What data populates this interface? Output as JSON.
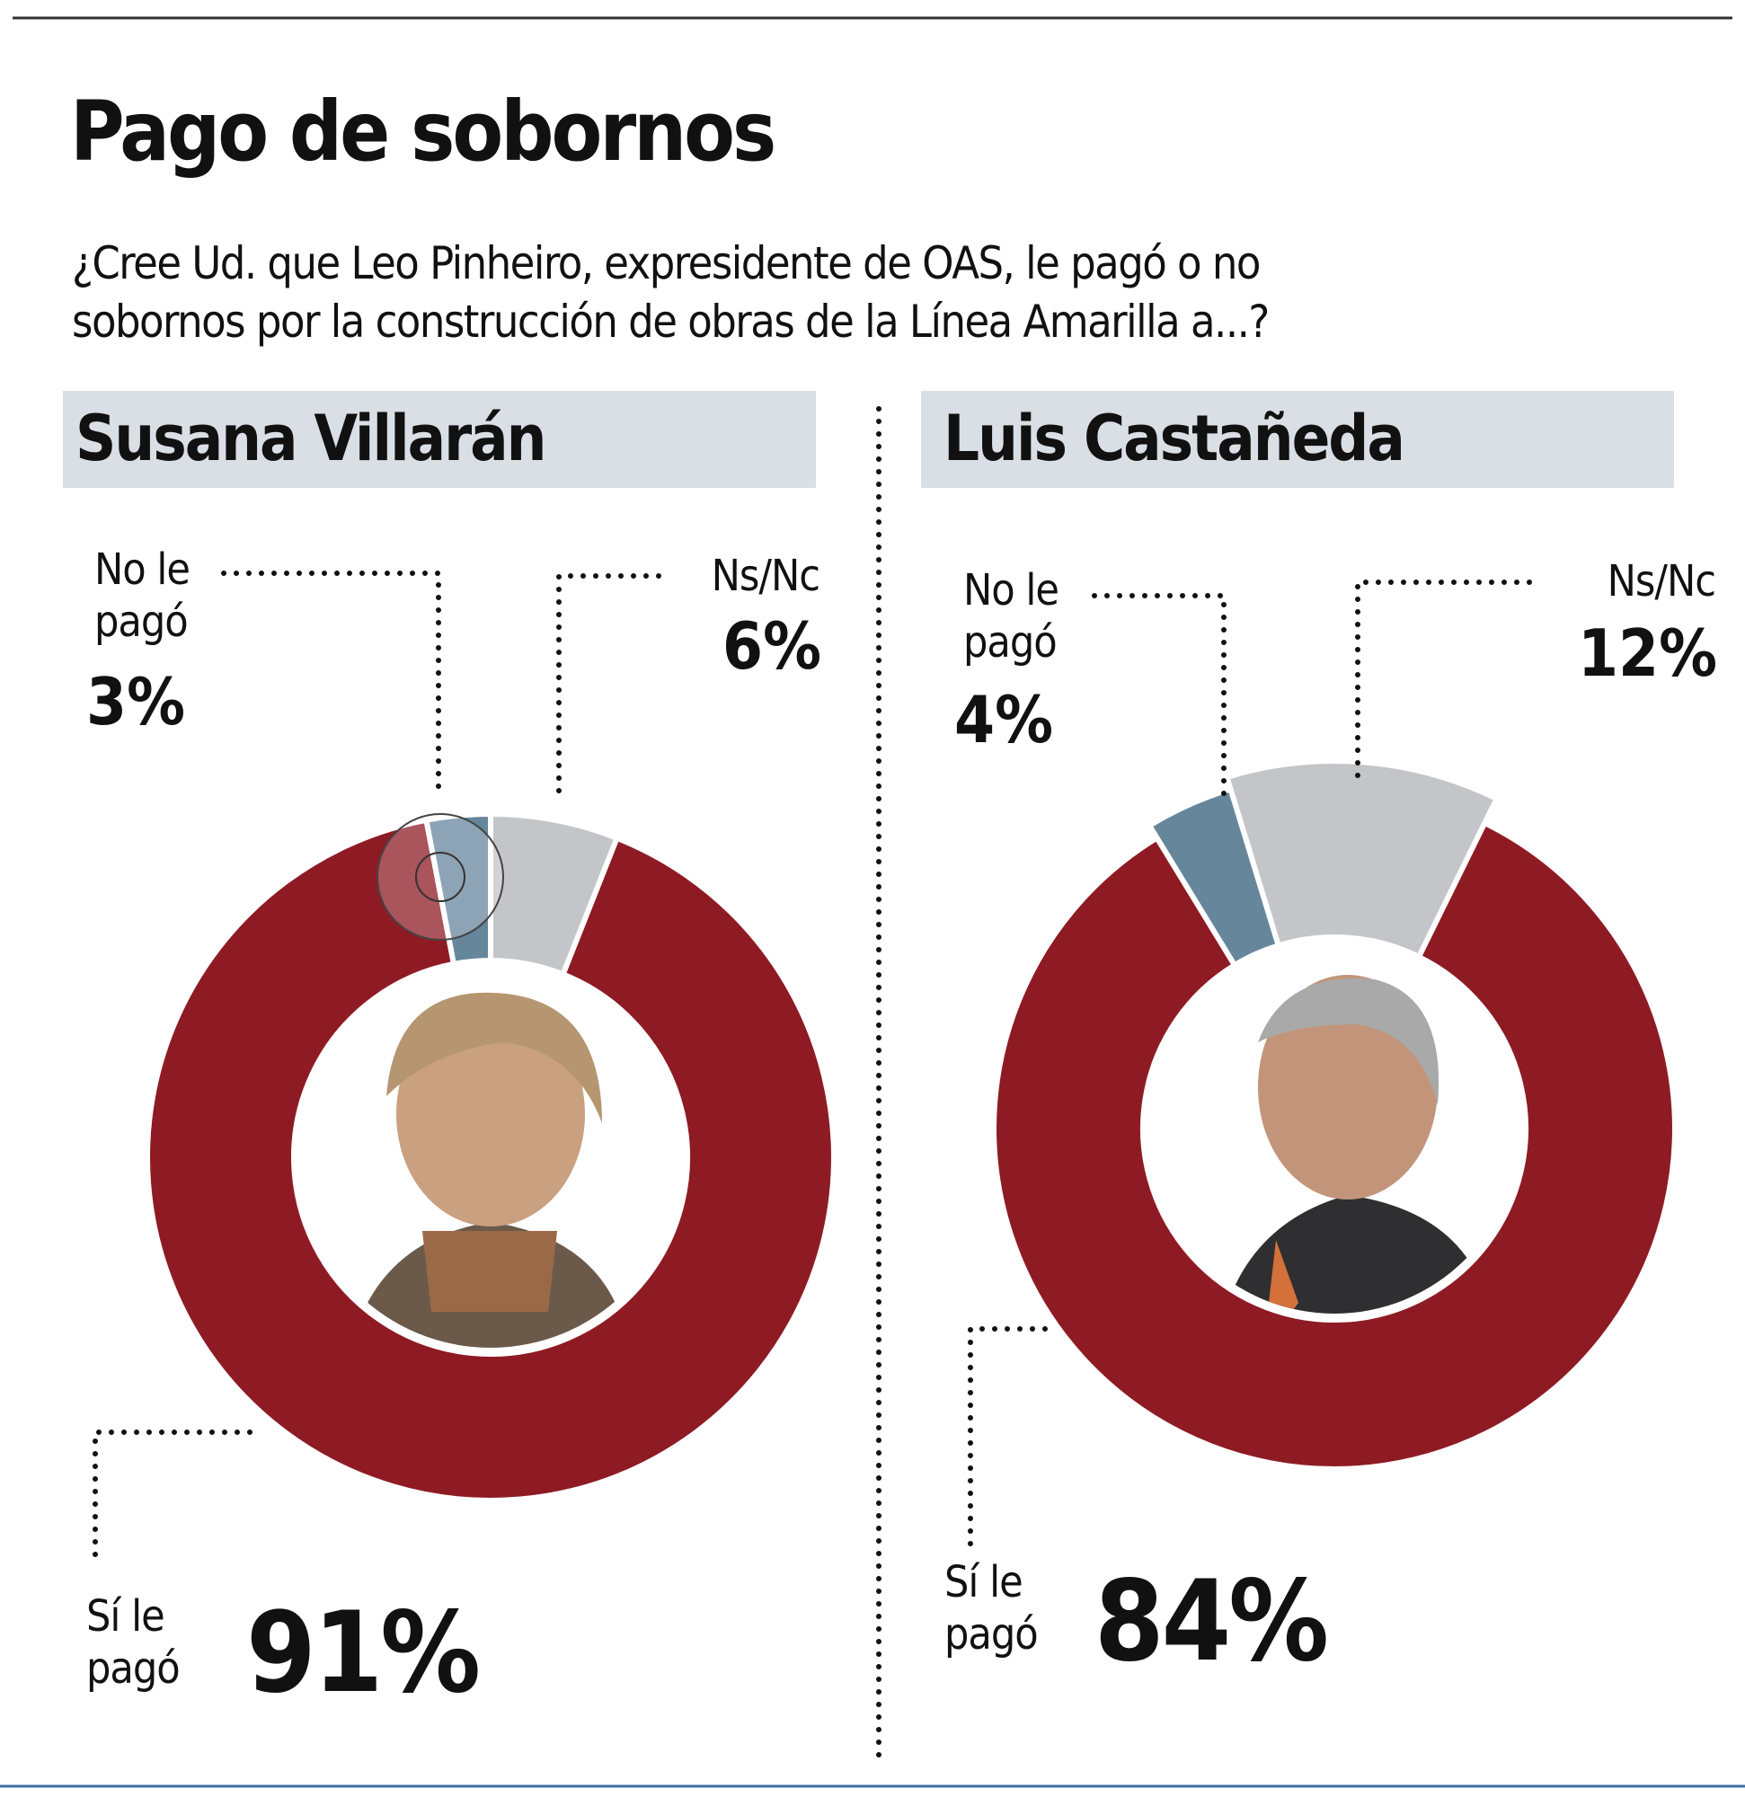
{
  "title": "Pago de sobornos",
  "subtitle": [
    "¿Cree Ud. que Leo Pinheiro, expresidente de OAS, le pagó o no",
    "sobornos por la construcción de obras de la Línea Amarilla a...?"
  ],
  "colors": {
    "si": "#8e1b24",
    "no": "#66869c",
    "nsnc": "#c4c5c8",
    "header_bg": "#dadfe5"
  },
  "chart_data": [
    {
      "type": "pie",
      "title": "Susana Villarán",
      "slices": [
        {
          "label": "Ns/Nc",
          "value": 6,
          "display": "6%"
        },
        {
          "label": "Sí le pagó",
          "value": 91,
          "display": "91%"
        },
        {
          "label": "No le pagó",
          "value": 3,
          "display": "3%"
        }
      ],
      "label_lines": {
        "no": [
          "No le",
          "pagó"
        ],
        "nsnc": "Ns/Nc",
        "si": [
          "Sí le",
          "pagó"
        ]
      }
    },
    {
      "type": "pie",
      "title": "Luis Castañeda",
      "slices": [
        {
          "label": "Ns/Nc",
          "value": 12,
          "display": "12%"
        },
        {
          "label": "Sí le pagó",
          "value": 84,
          "display": "84%"
        },
        {
          "label": "No le pagó",
          "value": 4,
          "display": "4%"
        }
      ],
      "label_lines": {
        "no": [
          "No le",
          "pagó"
        ],
        "nsnc": "Ns/Nc",
        "si": [
          "Sí le",
          "pagó"
        ]
      }
    }
  ]
}
